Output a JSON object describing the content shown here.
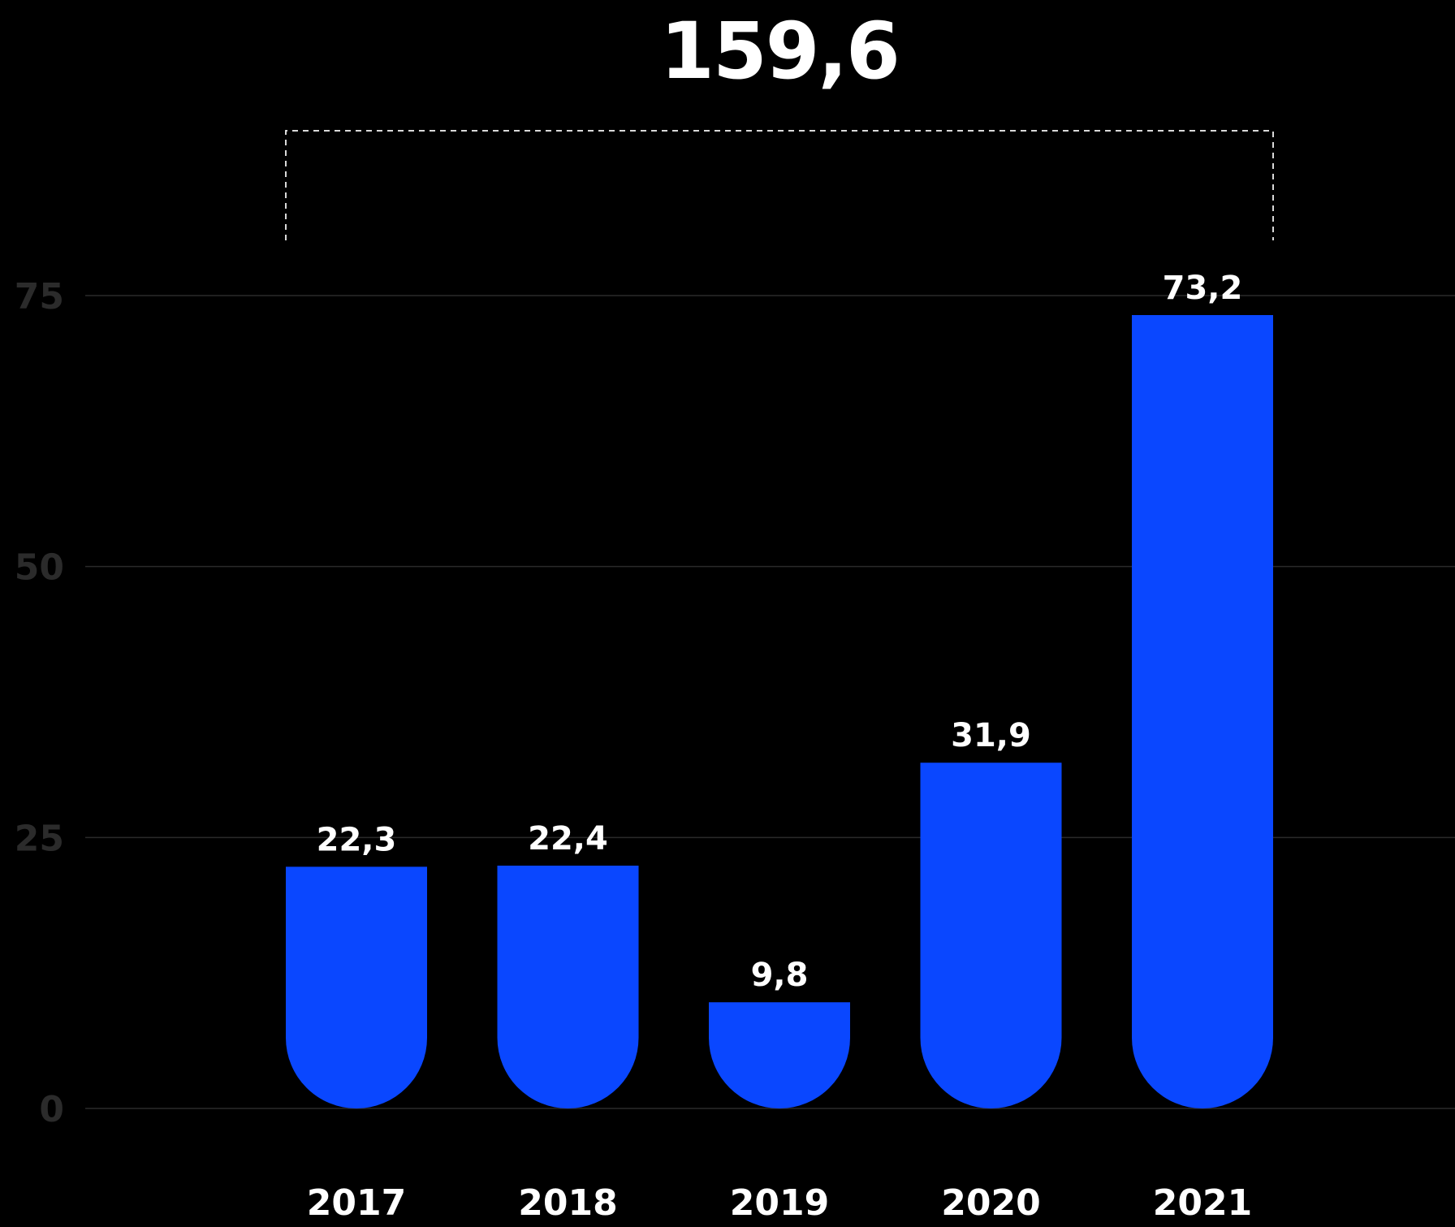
{
  "chart_data": {
    "type": "bar",
    "categories": [
      "2017",
      "2018",
      "2019",
      "2020",
      "2021"
    ],
    "values": [
      22.3,
      22.4,
      9.8,
      31.9,
      73.2
    ],
    "value_labels": [
      "22,3",
      "22,4",
      "9,8",
      "31,9",
      "73,2"
    ],
    "y_ticks": [
      "0",
      "25",
      "50",
      "75"
    ],
    "y_tick_values": [
      0,
      25,
      50,
      75
    ],
    "ylim": [
      0,
      75
    ],
    "grid": true,
    "bar_color": "#0a47ff",
    "annotation": {
      "label": "159,6",
      "value": 159.6,
      "spans": [
        "2017",
        "2021"
      ]
    }
  }
}
